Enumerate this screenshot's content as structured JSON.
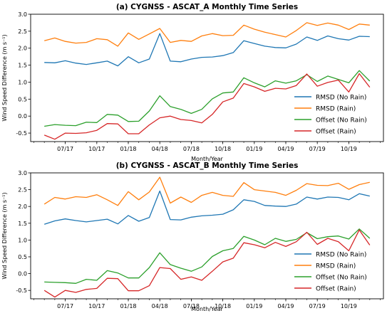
{
  "chart_data": [
    {
      "type": "line",
      "title": "(a) CYGNSS - ASCAT_A Monthly Time Series",
      "xlabel": "Month/Year",
      "ylabel": "Wind Speed Difference (m s⁻¹)",
      "ylim": [
        -0.75,
        3.0
      ],
      "yticks": [
        "-0.5",
        "0.0",
        "0.5",
        "1.0",
        "1.5",
        "2.0",
        "2.5",
        "3.0"
      ],
      "xticks": [
        "07/17",
        "10/17",
        "01/18",
        "04/18",
        "07/18",
        "10/18",
        "01/19",
        "04/19",
        "07/19",
        "10/19"
      ],
      "x": [
        "2017-05",
        "2017-06",
        "2017-07",
        "2017-08",
        "2017-09",
        "2017-10",
        "2017-11",
        "2017-12",
        "2018-01",
        "2018-02",
        "2018-03",
        "2018-04",
        "2018-05",
        "2018-06",
        "2018-07",
        "2018-08",
        "2018-09",
        "2018-10",
        "2018-11",
        "2018-12",
        "2019-01",
        "2019-02",
        "2019-03",
        "2019-04",
        "2019-05",
        "2019-06",
        "2019-07",
        "2019-08",
        "2019-09",
        "2019-10",
        "2019-11",
        "2019-12"
      ],
      "legend_position": "lower right",
      "series": [
        {
          "name": "RMSD (No Rain)",
          "color": "#1f77b4",
          "values": [
            1.58,
            1.57,
            1.63,
            1.56,
            1.52,
            1.57,
            1.62,
            1.48,
            1.75,
            1.57,
            1.68,
            2.43,
            1.62,
            1.6,
            1.68,
            1.73,
            1.74,
            1.78,
            1.87,
            2.22,
            2.14,
            2.06,
            2.02,
            2.01,
            2.12,
            2.33,
            2.23,
            2.36,
            2.28,
            2.24,
            2.35,
            2.34
          ]
        },
        {
          "name": "RMSD (Rain)",
          "color": "#ff7f0e",
          "values": [
            2.22,
            2.3,
            2.2,
            2.15,
            2.17,
            2.28,
            2.25,
            2.06,
            2.45,
            2.26,
            2.42,
            2.58,
            2.17,
            2.23,
            2.2,
            2.36,
            2.43,
            2.37,
            2.38,
            2.68,
            2.56,
            2.47,
            2.4,
            2.33,
            2.52,
            2.75,
            2.67,
            2.74,
            2.68,
            2.55,
            2.71,
            2.68
          ]
        },
        {
          "name": "Offset (No Rain)",
          "color": "#2ca02c",
          "values": [
            -0.3,
            -0.25,
            -0.27,
            -0.28,
            -0.18,
            -0.19,
            0.05,
            0.03,
            -0.16,
            -0.15,
            0.15,
            0.6,
            0.28,
            0.2,
            0.08,
            0.2,
            0.51,
            0.68,
            0.71,
            1.13,
            0.98,
            0.86,
            1.04,
            0.97,
            1.04,
            1.22,
            1.02,
            1.18,
            1.08,
            0.98,
            1.34,
            1.03
          ]
        },
        {
          "name": "Offset (Rain)",
          "color": "#d62728",
          "values": [
            -0.56,
            -0.68,
            -0.5,
            -0.51,
            -0.49,
            -0.42,
            -0.22,
            -0.23,
            -0.52,
            -0.52,
            -0.26,
            -0.05,
            0.0,
            -0.1,
            -0.13,
            -0.2,
            0.05,
            0.42,
            0.53,
            0.96,
            0.86,
            0.73,
            0.82,
            0.8,
            0.9,
            1.24,
            0.88,
            0.99,
            1.06,
            0.71,
            1.25,
            0.85
          ]
        }
      ]
    },
    {
      "type": "line",
      "title": "(b) CYGNSS - ASCAT_B Monthly Time Series",
      "xlabel": "Month/Year",
      "ylabel": "Wind Speed Difference (m s⁻¹)",
      "ylim": [
        -0.75,
        3.0
      ],
      "yticks": [
        "-0.5",
        "0.0",
        "0.5",
        "1.0",
        "1.5",
        "2.0",
        "2.5",
        "3.0"
      ],
      "xticks": [
        "07/17",
        "10/17",
        "01/18",
        "04/18",
        "07/18",
        "10/18",
        "01/19",
        "04/19",
        "07/19",
        "10/19"
      ],
      "x": [
        "2017-05",
        "2017-06",
        "2017-07",
        "2017-08",
        "2017-09",
        "2017-10",
        "2017-11",
        "2017-12",
        "2018-01",
        "2018-02",
        "2018-03",
        "2018-04",
        "2018-05",
        "2018-06",
        "2018-07",
        "2018-08",
        "2018-09",
        "2018-10",
        "2018-11",
        "2018-12",
        "2019-01",
        "2019-02",
        "2019-03",
        "2019-04",
        "2019-05",
        "2019-06",
        "2019-07",
        "2019-08",
        "2019-09",
        "2019-10",
        "2019-11",
        "2019-12"
      ],
      "legend_position": "lower right",
      "series": [
        {
          "name": "RMSD (No Rain)",
          "color": "#1f77b4",
          "values": [
            1.47,
            1.57,
            1.63,
            1.58,
            1.54,
            1.58,
            1.62,
            1.48,
            1.73,
            1.56,
            1.67,
            2.46,
            1.61,
            1.6,
            1.68,
            1.72,
            1.74,
            1.77,
            1.9,
            2.2,
            2.15,
            2.03,
            2.01,
            2.0,
            2.07,
            2.28,
            2.22,
            2.28,
            2.27,
            2.2,
            2.38,
            2.31
          ]
        },
        {
          "name": "RMSD (Rain)",
          "color": "#ff7f0e",
          "values": [
            2.07,
            2.27,
            2.22,
            2.29,
            2.27,
            2.35,
            2.2,
            2.03,
            2.44,
            2.2,
            2.43,
            2.87,
            2.1,
            2.28,
            2.12,
            2.33,
            2.42,
            2.33,
            2.3,
            2.71,
            2.5,
            2.46,
            2.42,
            2.33,
            2.48,
            2.68,
            2.63,
            2.62,
            2.69,
            2.51,
            2.65,
            2.72
          ]
        },
        {
          "name": "Offset (No Rain)",
          "color": "#2ca02c",
          "values": [
            -0.25,
            -0.26,
            -0.27,
            -0.29,
            -0.17,
            -0.2,
            0.09,
            0.02,
            -0.13,
            -0.13,
            0.18,
            0.62,
            0.27,
            0.16,
            0.07,
            0.2,
            0.51,
            0.68,
            0.75,
            1.11,
            1.0,
            0.86,
            1.05,
            0.96,
            1.02,
            1.22,
            1.04,
            1.1,
            1.12,
            1.03,
            1.33,
            1.05
          ]
        },
        {
          "name": "Offset (Rain)",
          "color": "#d62728",
          "values": [
            -0.5,
            -0.7,
            -0.5,
            -0.56,
            -0.47,
            -0.44,
            -0.14,
            -0.15,
            -0.51,
            -0.51,
            -0.36,
            0.18,
            0.15,
            -0.17,
            -0.1,
            -0.2,
            0.07,
            0.35,
            0.46,
            0.92,
            0.86,
            0.77,
            0.93,
            0.81,
            0.95,
            1.23,
            0.87,
            1.05,
            0.95,
            0.68,
            1.3,
            0.85
          ]
        }
      ]
    }
  ]
}
